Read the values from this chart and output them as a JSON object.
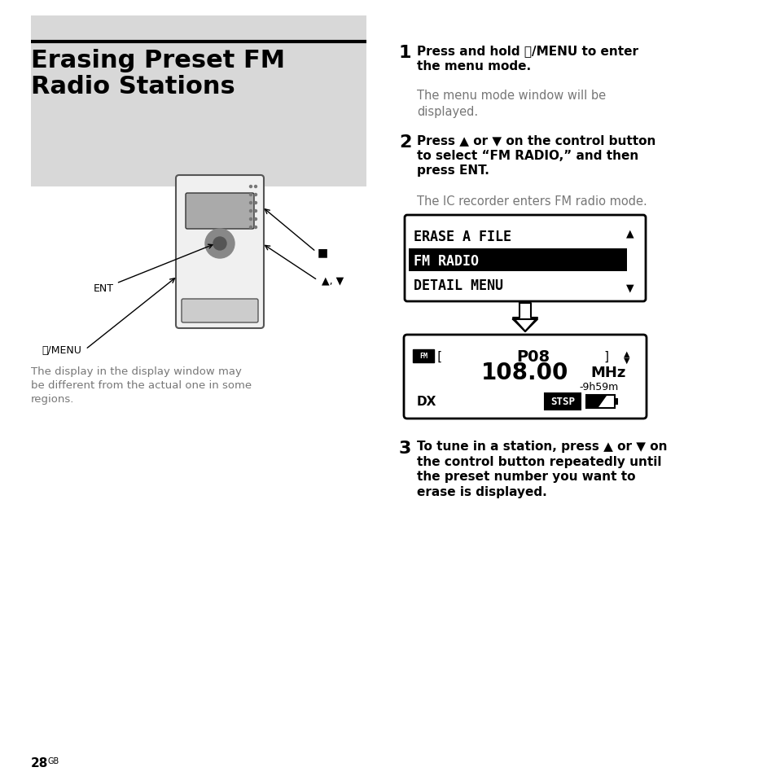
{
  "title": "Erasing Preset FM\nRadio Stations",
  "bg_color": "#ffffff",
  "step1_num": "1",
  "step1_bold": "Press and hold Ⓥ/MENU to enter\nthe menu mode.",
  "step1_normal": "The menu mode window will be\ndisplayed.",
  "step2_num": "2",
  "step2_bold": "Press ▲ or ▼ on the control button\nto select “FM RADIO,” and then\npress ENT.",
  "step2_normal": "The IC recorder enters FM radio mode.",
  "step3_num": "3",
  "step3_bold": "To tune in a station, press ▲ or ▼ on\nthe control button repeatedly until\nthe preset number you want to\nerase is displayed.",
  "menu_items": [
    "ERASE A FILE",
    "FM RADIO",
    "DETAIL MENU"
  ],
  "menu_selected": 1,
  "display_line1": "FM [    P08    ]",
  "display_line2": "108.00MHz",
  "display_line3": "-9h59m",
  "display_line4_left": "DX",
  "display_line4_right": "STSP",
  "page_num": "28",
  "footnote": "The display in the display window may\nbe different from the actual one in some\nregions."
}
